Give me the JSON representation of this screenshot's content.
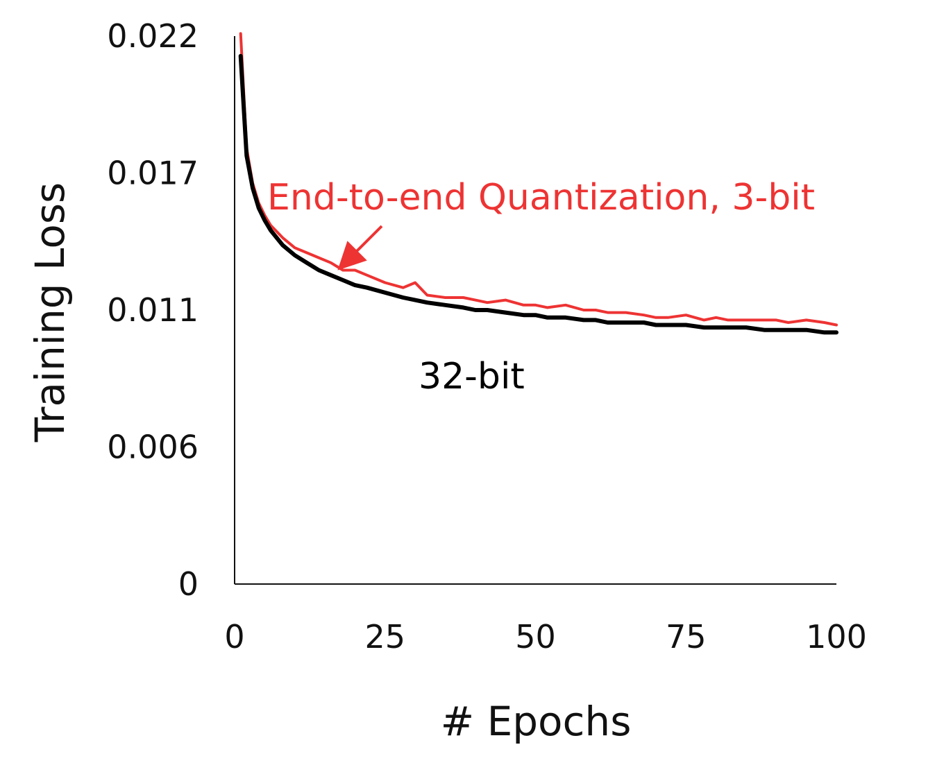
{
  "chart_data": {
    "type": "line",
    "title": "",
    "xlabel": "# Epochs",
    "ylabel": "Training Loss",
    "xlim": [
      0,
      100
    ],
    "ylim": [
      0,
      0.022
    ],
    "x_ticks": [
      0,
      25,
      50,
      75,
      100
    ],
    "x_tick_labels": [
      "0",
      "25",
      "50",
      "75",
      "100"
    ],
    "y_ticks": [
      0,
      0.0055,
      0.011,
      0.0165,
      0.022
    ],
    "y_tick_labels": [
      "0",
      "0.006",
      "0.011",
      "0.017",
      "0.022"
    ],
    "grid": false,
    "legend": "none",
    "series": [
      {
        "name": "End-to-end Quantization, 3-bit",
        "color": "#ee3333",
        "x": [
          1,
          2,
          3,
          4,
          5,
          6,
          8,
          10,
          12,
          14,
          16,
          18,
          20,
          22,
          25,
          28,
          30,
          32,
          35,
          38,
          40,
          42,
          45,
          48,
          50,
          52,
          55,
          58,
          60,
          62,
          65,
          68,
          70,
          72,
          75,
          78,
          80,
          82,
          85,
          88,
          90,
          92,
          95,
          98,
          100
        ],
        "y": [
          0.0221,
          0.0175,
          0.0161,
          0.0153,
          0.0148,
          0.0144,
          0.0139,
          0.0135,
          0.0133,
          0.0131,
          0.0129,
          0.0126,
          0.0126,
          0.0124,
          0.0121,
          0.0119,
          0.0121,
          0.0116,
          0.0115,
          0.0115,
          0.0114,
          0.0113,
          0.0114,
          0.0112,
          0.0112,
          0.0111,
          0.0112,
          0.011,
          0.011,
          0.0109,
          0.0109,
          0.0108,
          0.0107,
          0.0107,
          0.0108,
          0.0106,
          0.0107,
          0.0106,
          0.0106,
          0.0106,
          0.0106,
          0.0105,
          0.0106,
          0.0105,
          0.0104
        ]
      },
      {
        "name": "32-bit",
        "color": "#000000",
        "x": [
          1,
          2,
          3,
          4,
          5,
          6,
          8,
          10,
          12,
          14,
          16,
          18,
          20,
          22,
          25,
          28,
          30,
          32,
          35,
          38,
          40,
          42,
          45,
          48,
          50,
          52,
          55,
          58,
          60,
          62,
          65,
          68,
          70,
          72,
          75,
          78,
          80,
          82,
          85,
          88,
          90,
          92,
          95,
          98,
          100
        ],
        "y": [
          0.0212,
          0.0172,
          0.0159,
          0.0151,
          0.0146,
          0.0142,
          0.0136,
          0.0132,
          0.0129,
          0.0126,
          0.0124,
          0.0122,
          0.012,
          0.0119,
          0.0117,
          0.0115,
          0.0114,
          0.0113,
          0.0112,
          0.0111,
          0.011,
          0.011,
          0.0109,
          0.0108,
          0.0108,
          0.0107,
          0.0107,
          0.0106,
          0.0106,
          0.0105,
          0.0105,
          0.0105,
          0.0104,
          0.0104,
          0.0104,
          0.0103,
          0.0103,
          0.0103,
          0.0103,
          0.0102,
          0.0102,
          0.0102,
          0.0102,
          0.0101,
          0.0101
        ]
      }
    ],
    "annotations": [
      {
        "text": "End-to-end Quantization, 3-bit",
        "color": "#ee3333"
      },
      {
        "text": "32-bit",
        "color": "#000000"
      }
    ]
  }
}
